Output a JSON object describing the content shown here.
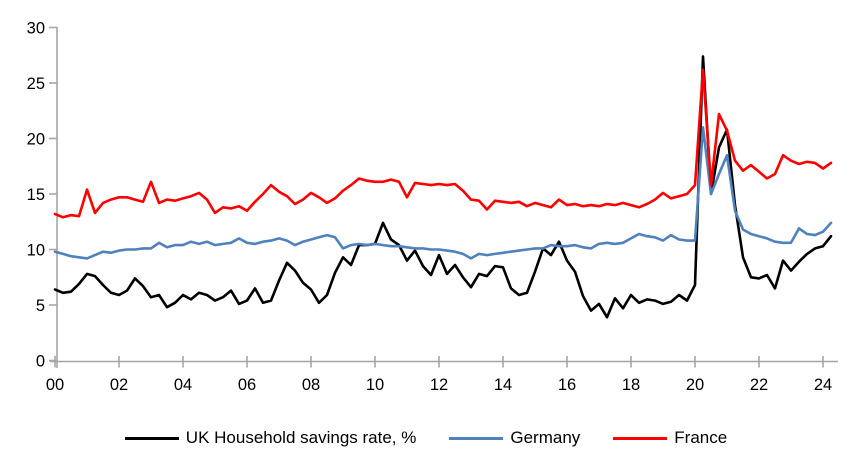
{
  "chart_data": {
    "type": "line",
    "title": "",
    "x_start_year": 2000,
    "x_step_years": 0.25,
    "x_axis": {
      "ticks": [
        0,
        2,
        4,
        6,
        8,
        10,
        12,
        14,
        16,
        18,
        20,
        22,
        24
      ],
      "labels": [
        "00",
        "02",
        "04",
        "06",
        "08",
        "10",
        "12",
        "14",
        "16",
        "18",
        "20",
        "22",
        "24"
      ]
    },
    "y_axis": {
      "ticks": [
        0,
        5,
        10,
        15,
        20,
        25,
        30
      ],
      "labels": [
        "0",
        "5",
        "10",
        "15",
        "20",
        "25",
        "30"
      ],
      "range": [
        0,
        30
      ]
    },
    "grid": "off",
    "legend_position": "bottom",
    "axis_color": "#A6A6A6",
    "series": [
      {
        "name": "UK Household savings rate, %",
        "color": "#000000",
        "values": [
          6.4,
          6.1,
          6.2,
          6.9,
          7.8,
          7.6,
          6.8,
          6.1,
          5.9,
          6.3,
          7.4,
          6.7,
          5.7,
          5.9,
          4.8,
          5.2,
          5.9,
          5.5,
          6.1,
          5.9,
          5.4,
          5.7,
          6.3,
          5.1,
          5.4,
          6.5,
          5.2,
          5.4,
          7.2,
          8.8,
          8.1,
          7.0,
          6.4,
          5.2,
          5.9,
          7.9,
          9.3,
          8.6,
          10.4,
          10.4,
          10.5,
          12.4,
          10.9,
          10.4,
          9.0,
          9.9,
          8.5,
          7.7,
          9.5,
          7.8,
          8.6,
          7.5,
          6.6,
          7.8,
          7.6,
          8.5,
          8.4,
          6.5,
          5.9,
          6.1,
          8.0,
          10.1,
          9.5,
          10.7,
          9.0,
          8.0,
          5.8,
          4.5,
          5.1,
          3.9,
          5.6,
          4.7,
          5.9,
          5.2,
          5.5,
          5.4,
          5.1,
          5.3,
          5.9,
          5.4,
          6.8,
          27.4,
          15.0,
          19.2,
          20.8,
          14.0,
          9.3,
          7.5,
          7.4,
          7.7,
          6.5,
          9.0,
          8.1,
          8.9,
          9.6,
          10.1,
          10.3,
          11.2
        ]
      },
      {
        "name": "Germany",
        "color": "#4F81BD",
        "values": [
          9.8,
          9.6,
          9.4,
          9.3,
          9.2,
          9.5,
          9.8,
          9.7,
          9.9,
          10.0,
          10.0,
          10.1,
          10.1,
          10.6,
          10.2,
          10.4,
          10.4,
          10.7,
          10.5,
          10.7,
          10.4,
          10.5,
          10.6,
          11.0,
          10.6,
          10.5,
          10.7,
          10.8,
          11.0,
          10.8,
          10.4,
          10.7,
          10.9,
          11.1,
          11.3,
          11.1,
          10.1,
          10.4,
          10.5,
          10.4,
          10.5,
          10.4,
          10.3,
          10.3,
          10.2,
          10.1,
          10.1,
          10.0,
          10.0,
          9.9,
          9.8,
          9.6,
          9.2,
          9.6,
          9.5,
          9.6,
          9.7,
          9.8,
          9.9,
          10.0,
          10.1,
          10.1,
          10.4,
          10.3,
          10.3,
          10.4,
          10.2,
          10.1,
          10.5,
          10.6,
          10.5,
          10.6,
          11.0,
          11.4,
          11.2,
          11.1,
          10.8,
          11.3,
          10.9,
          10.8,
          10.8,
          21.0,
          15.0,
          16.8,
          18.5,
          13.5,
          11.8,
          11.4,
          11.2,
          11.0,
          10.7,
          10.6,
          10.6,
          11.9,
          11.4,
          11.3,
          11.6,
          12.4
        ]
      },
      {
        "name": "France",
        "color": "#FF0000",
        "values": [
          13.2,
          12.9,
          13.1,
          13.0,
          15.4,
          13.3,
          14.2,
          14.5,
          14.7,
          14.7,
          14.5,
          14.3,
          16.1,
          14.2,
          14.5,
          14.4,
          14.6,
          14.8,
          15.1,
          14.5,
          13.3,
          13.8,
          13.7,
          13.9,
          13.5,
          14.3,
          15.0,
          15.8,
          15.2,
          14.8,
          14.1,
          14.5,
          15.1,
          14.7,
          14.2,
          14.6,
          15.3,
          15.8,
          16.4,
          16.2,
          16.1,
          16.1,
          16.3,
          16.1,
          14.7,
          16.0,
          15.9,
          15.8,
          15.9,
          15.8,
          15.9,
          15.3,
          14.5,
          14.4,
          13.6,
          14.4,
          14.3,
          14.2,
          14.3,
          13.9,
          14.2,
          14.0,
          13.8,
          14.5,
          14.0,
          14.1,
          13.9,
          14.0,
          13.9,
          14.1,
          14.0,
          14.2,
          14.0,
          13.8,
          14.1,
          14.5,
          15.1,
          14.6,
          14.8,
          15.0,
          15.8,
          26.2,
          15.8,
          22.2,
          20.7,
          18.0,
          17.1,
          17.6,
          17.0,
          16.4,
          16.8,
          18.5,
          18.0,
          17.7,
          17.9,
          17.8,
          17.3,
          17.8
        ]
      }
    ]
  },
  "legend": {
    "items": [
      {
        "label": "UK Household savings rate, %",
        "color": "#000000"
      },
      {
        "label": "Germany",
        "color": "#4F81BD"
      },
      {
        "label": "France",
        "color": "#FF0000"
      }
    ]
  }
}
